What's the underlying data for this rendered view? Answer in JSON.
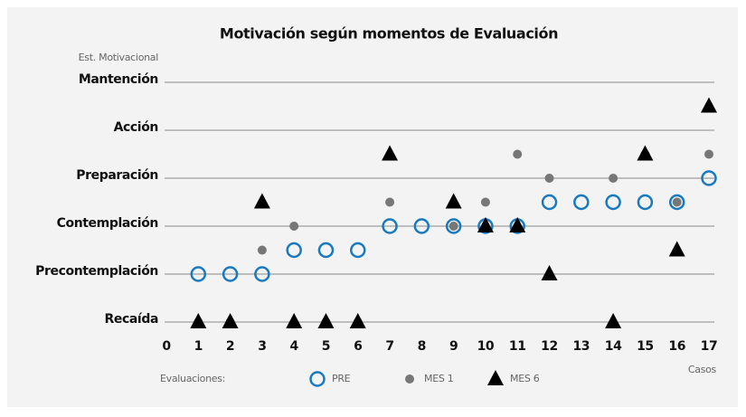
{
  "chart_data": {
    "type": "scatter",
    "title": "Motivación según momentos de Evaluación",
    "y_label": "Est. Motivacional",
    "x_label": "Casos",
    "legend_title": "Evaluaciones:",
    "x": [
      1,
      2,
      3,
      4,
      5,
      6,
      7,
      8,
      9,
      10,
      11,
      12,
      13,
      14,
      15,
      16,
      17
    ],
    "xlim": [
      0,
      17
    ],
    "xticks": [
      0,
      1,
      2,
      3,
      4,
      5,
      6,
      7,
      8,
      9,
      10,
      11,
      12,
      13,
      14,
      15,
      16,
      17
    ],
    "ylim": [
      0,
      5
    ],
    "yticks": [
      {
        "value": 0,
        "label": "Recaída"
      },
      {
        "value": 1,
        "label": "Precontemplación"
      },
      {
        "value": 2,
        "label": "Contemplación"
      },
      {
        "value": 3,
        "label": "Preparación"
      },
      {
        "value": 4,
        "label": "Acción"
      },
      {
        "value": 5,
        "label": "Mantención"
      }
    ],
    "grid": true,
    "series": [
      {
        "name": "PRE",
        "color": "#1a7abf",
        "marker": "circle-open",
        "values": [
          1,
          1,
          1,
          1.5,
          1.5,
          1.5,
          2,
          2,
          2,
          2,
          2,
          2.5,
          2.5,
          2.5,
          2.5,
          2.5,
          3
        ]
      },
      {
        "name": "MES 1",
        "color": "#777777",
        "marker": "dot",
        "values": [
          0,
          0,
          1.5,
          2,
          0,
          0,
          2.5,
          null,
          2,
          2.5,
          3.5,
          3,
          null,
          3,
          3.5,
          2.5,
          3.5
        ]
      },
      {
        "name": "MES 6",
        "color": "#000000",
        "marker": "triangle",
        "values": [
          0,
          0,
          2.5,
          0,
          0,
          0,
          3.5,
          null,
          2.5,
          2,
          2,
          1,
          null,
          0,
          3.5,
          1.5,
          4.5
        ]
      }
    ]
  }
}
